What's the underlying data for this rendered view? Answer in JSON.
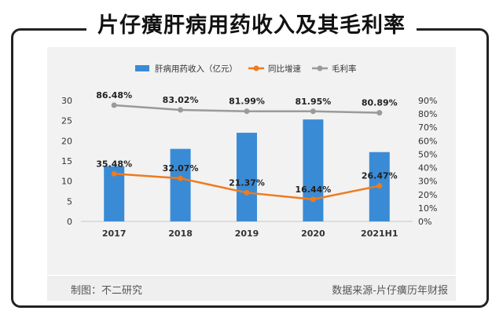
{
  "title": "片仔癀肝病用药收入及其毛利率",
  "footer": {
    "left": "制图：不二研究",
    "right": "数据来源-片仔癀历年财报"
  },
  "chart_data": {
    "type": "bar",
    "categories": [
      "2017",
      "2018",
      "2019",
      "2020",
      "2021H1"
    ],
    "series": [
      {
        "name": "肝病用药收入（亿元）",
        "kind": "bar",
        "axis": "left",
        "color": "#3a8bd5",
        "values": [
          13.7,
          18.0,
          22.0,
          25.3,
          17.2
        ]
      },
      {
        "name": "同比增速",
        "kind": "line",
        "axis": "right",
        "color": "#ef7b1c",
        "values": [
          35.48,
          32.07,
          21.37,
          16.44,
          26.47
        ],
        "labels": [
          "35.48%",
          "32.07%",
          "21.37%",
          "16.44%",
          "26.47%"
        ]
      },
      {
        "name": "毛利率",
        "kind": "line",
        "axis": "right",
        "color": "#9a9a9a",
        "values": [
          86.48,
          83.02,
          81.99,
          81.95,
          80.89
        ],
        "labels": [
          "86.48%",
          "83.02%",
          "81.99%",
          "81.95%",
          "80.89%"
        ]
      }
    ],
    "left_axis": {
      "min": 0,
      "max": 30,
      "ticks": [
        "0",
        "5",
        "10",
        "15",
        "20",
        "25",
        "30"
      ]
    },
    "right_axis": {
      "min": 0,
      "max": 90,
      "ticks": [
        "0%",
        "10%",
        "20%",
        "30%",
        "40%",
        "50%",
        "60%",
        "70%",
        "80%",
        "90%"
      ]
    },
    "grid": false,
    "legend_position": "top"
  }
}
